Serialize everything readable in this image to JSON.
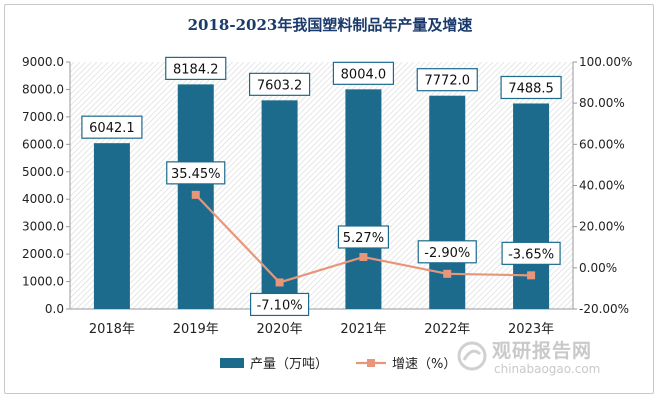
{
  "chart_data": {
    "type": "bar",
    "title": "2018-2023年我国塑料制品年产量及增速",
    "categories": [
      "2018年",
      "2019年",
      "2020年",
      "2021年",
      "2022年",
      "2023年"
    ],
    "series": [
      {
        "name": "产量（万吨）",
        "type": "bar",
        "axis": "left",
        "values": [
          6042.1,
          8184.2,
          7603.2,
          8004.0,
          7772.0,
          7488.5
        ],
        "labels": [
          "6042.1",
          "8184.2",
          "7603.2",
          "8004.0",
          "7772.0",
          "7488.5"
        ],
        "color": "#1c6a8c"
      },
      {
        "name": "增速（%）",
        "type": "line",
        "axis": "right",
        "values": [
          null,
          35.45,
          -7.1,
          5.27,
          -2.9,
          -3.65
        ],
        "labels": [
          "",
          "35.45%",
          "-7.10%",
          "5.27%",
          "-2.90%",
          "-3.65%"
        ],
        "color": "#e8967a"
      }
    ],
    "y_left": {
      "min": 0,
      "max": 9000,
      "step": 1000,
      "ticks": [
        "0.0",
        "1000.0",
        "2000.0",
        "3000.0",
        "4000.0",
        "5000.0",
        "6000.0",
        "7000.0",
        "8000.0",
        "9000.0"
      ]
    },
    "y_right": {
      "min": -20,
      "max": 100,
      "step": 20,
      "ticks": [
        "-20.00%",
        "0.00%",
        "20.00%",
        "40.00%",
        "60.00%",
        "80.00%",
        "100.00%"
      ]
    },
    "grid": false,
    "legend_position": "bottom"
  },
  "watermark": {
    "text_cn": "观研报告网",
    "text_en": "chinabaogao.com"
  }
}
